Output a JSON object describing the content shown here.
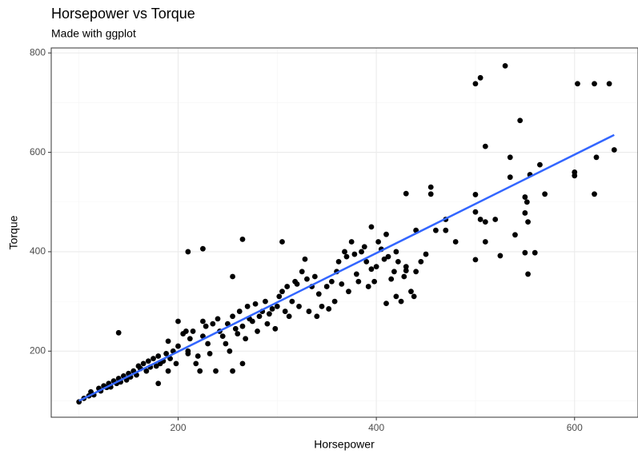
{
  "chart_data": {
    "type": "scatter",
    "title": "Horsepower vs Torque",
    "subtitle": "Made with ggplot",
    "xlabel": "Horsepower",
    "ylabel": "Torque",
    "color": "#000000",
    "x": [
      100,
      105,
      110,
      112,
      115,
      120,
      122,
      125,
      128,
      130,
      132,
      135,
      138,
      140,
      142,
      145,
      148,
      150,
      152,
      155,
      158,
      160,
      162,
      165,
      168,
      170,
      172,
      175,
      178,
      180,
      182,
      185,
      188,
      190,
      192,
      195,
      198,
      200,
      200,
      205,
      208,
      210,
      212,
      215,
      218,
      220,
      222,
      225,
      228,
      230,
      232,
      235,
      238,
      240,
      242,
      245,
      248,
      250,
      252,
      255,
      258,
      260,
      262,
      265,
      268,
      270,
      272,
      275,
      278,
      280,
      282,
      285,
      288,
      290,
      292,
      295,
      298,
      300,
      302,
      305,
      308,
      310,
      312,
      315,
      318,
      320,
      322,
      325,
      328,
      330,
      332,
      335,
      338,
      340,
      342,
      345,
      350,
      352,
      355,
      358,
      360,
      362,
      365,
      368,
      370,
      372,
      375,
      378,
      380,
      382,
      385,
      388,
      390,
      392,
      395,
      398,
      400,
      402,
      405,
      408,
      412,
      415,
      418,
      422,
      428,
      435,
      438,
      210,
      190,
      265,
      255,
      225,
      180,
      140,
      210,
      225,
      265,
      255,
      305,
      505,
      500,
      530,
      545,
      510,
      603,
      620,
      635,
      640,
      600,
      600,
      622,
      620,
      565,
      555,
      570,
      535,
      535,
      550,
      552,
      550,
      553,
      550,
      560,
      553,
      500,
      500,
      505,
      510,
      520,
      500,
      510,
      525,
      540,
      480,
      470,
      470,
      455,
      455,
      430,
      440,
      460,
      395,
      410,
      420,
      430,
      430,
      420,
      425,
      410,
      440,
      450,
      445
    ],
    "y": [
      98,
      105,
      110,
      118,
      112,
      125,
      120,
      130,
      127,
      135,
      128,
      140,
      135,
      145,
      138,
      150,
      142,
      155,
      148,
      160,
      152,
      170,
      165,
      175,
      160,
      180,
      168,
      185,
      170,
      190,
      175,
      180,
      195,
      160,
      185,
      200,
      175,
      210,
      260,
      235,
      240,
      200,
      225,
      240,
      175,
      190,
      160,
      230,
      250,
      215,
      195,
      255,
      160,
      265,
      240,
      230,
      215,
      255,
      200,
      270,
      245,
      235,
      280,
      250,
      225,
      290,
      265,
      260,
      295,
      240,
      270,
      280,
      300,
      255,
      275,
      285,
      245,
      290,
      310,
      320,
      280,
      330,
      270,
      300,
      340,
      335,
      290,
      360,
      385,
      345,
      280,
      330,
      350,
      270,
      315,
      290,
      330,
      285,
      340,
      300,
      360,
      380,
      335,
      400,
      390,
      320,
      420,
      395,
      355,
      340,
      400,
      410,
      380,
      330,
      365,
      340,
      370,
      420,
      405,
      385,
      390,
      345,
      360,
      380,
      350,
      320,
      310,
      195,
      220,
      175,
      160,
      260,
      135,
      237,
      400,
      406,
      425,
      350,
      420,
      750,
      738,
      774,
      664,
      612,
      738,
      738,
      738,
      605,
      560,
      553,
      590,
      516,
      575,
      555,
      516,
      550,
      590,
      510,
      500,
      478,
      460,
      398,
      398,
      355,
      515,
      480,
      465,
      460,
      465,
      384,
      420,
      392,
      434,
      420,
      465,
      443,
      530,
      516,
      517,
      443,
      443,
      450,
      435,
      400,
      370,
      362,
      310,
      300,
      296,
      360,
      395,
      380
    ],
    "trend": {
      "color": "#3366ff",
      "x": [
        100,
        640
      ],
      "y": [
        100,
        635
      ]
    },
    "xlim": [
      72,
      664
    ],
    "ylim": [
      67,
      810
    ],
    "xticks": [
      200,
      400,
      600
    ],
    "yticks": [
      200,
      400,
      600,
      800
    ],
    "minor_xticks": [
      100,
      300,
      500
    ],
    "minor_yticks": [
      100,
      300,
      500,
      700
    ],
    "grid": true
  }
}
